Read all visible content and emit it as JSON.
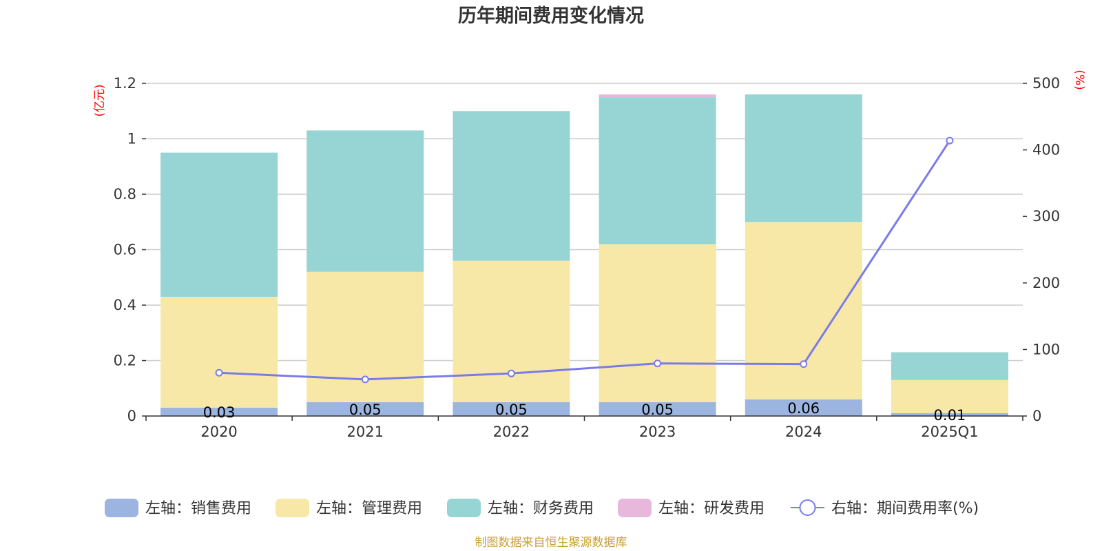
{
  "chart_data": {
    "type": "bar",
    "title": "历年期间费用变化情况",
    "categories": [
      "2020",
      "2021",
      "2022",
      "2023",
      "2024",
      "2025Q1"
    ],
    "y_left": {
      "unit": "(亿元)",
      "range": [
        0,
        1.2
      ],
      "ticks": [
        "0",
        "0.2",
        "0.4",
        "0.6",
        "0.8",
        "1",
        "1.2"
      ]
    },
    "y_right": {
      "unit": "(%)",
      "range": [
        0,
        500
      ],
      "ticks": [
        "0",
        "100",
        "200",
        "300",
        "400",
        "500"
      ]
    },
    "grid": true,
    "legend_position": "bottom",
    "stacked": true,
    "series": [
      {
        "name": "左轴：销售费用",
        "axis": "left",
        "kind": "bar",
        "color": "#9bb5e0",
        "values": [
          0.03,
          0.05,
          0.05,
          0.05,
          0.06,
          0.01
        ],
        "labels": [
          "0.03",
          "0.05",
          "0.05",
          "0.05",
          "0.06",
          "0.01"
        ]
      },
      {
        "name": "左轴：管理费用",
        "axis": "left",
        "kind": "bar",
        "color": "#f7e8a8",
        "values": [
          0.4,
          0.47,
          0.51,
          0.57,
          0.64,
          0.12
        ]
      },
      {
        "name": "左轴：财务费用",
        "axis": "left",
        "kind": "bar",
        "color": "#97d4d4",
        "values": [
          0.52,
          0.51,
          0.54,
          0.53,
          0.46,
          0.1
        ]
      },
      {
        "name": "左轴：研发费用",
        "axis": "left",
        "kind": "bar",
        "color": "#e8b8dc",
        "values": [
          0,
          0,
          0,
          0.01,
          0,
          0
        ]
      },
      {
        "name": "右轴：期间费用率(%)",
        "axis": "right",
        "kind": "line",
        "color": "#7b7be8",
        "values": [
          65,
          55,
          64,
          79,
          78,
          414
        ]
      }
    ]
  },
  "source_note": "制图数据来自恒生聚源数据库"
}
